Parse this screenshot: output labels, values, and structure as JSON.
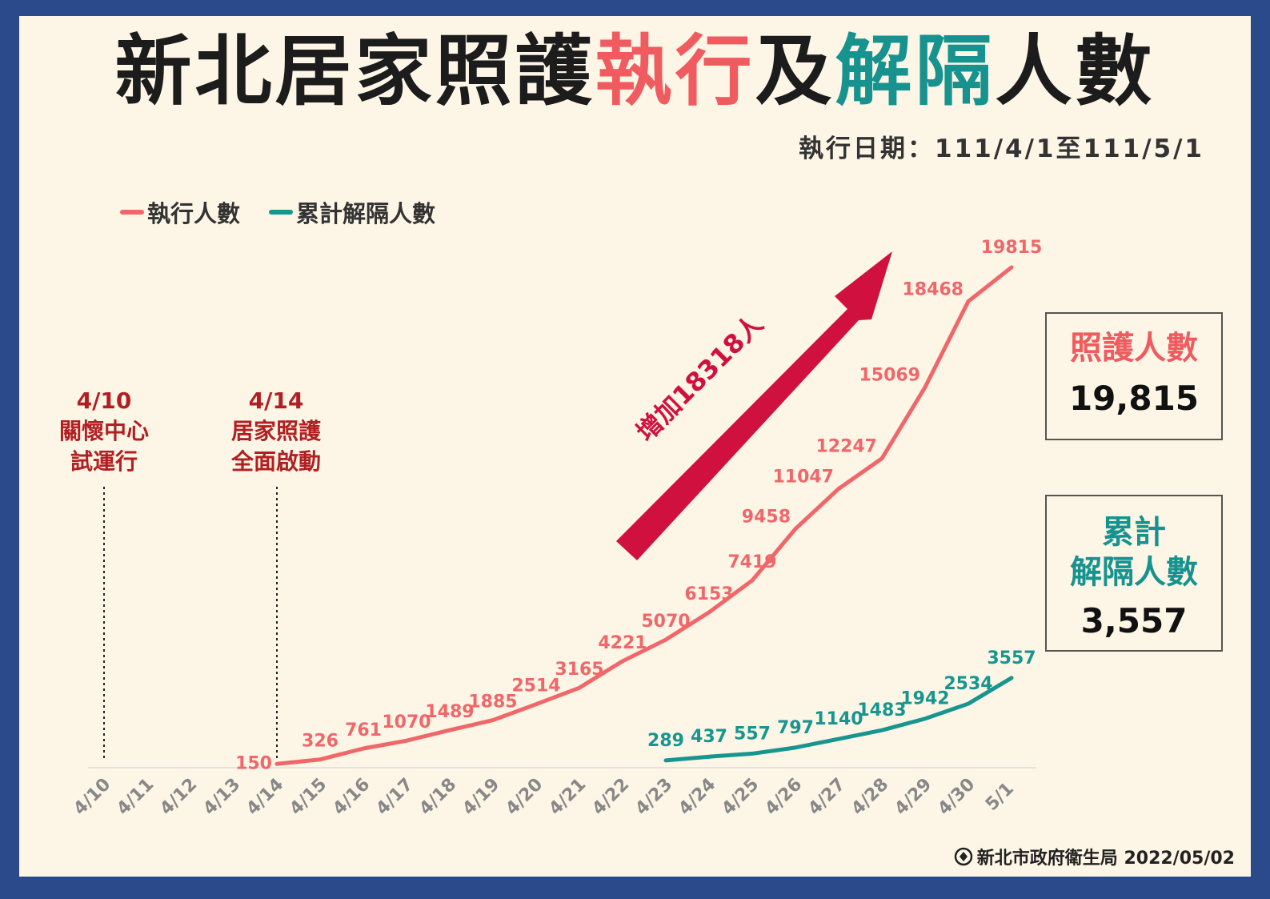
{
  "title": {
    "part1": "新北居家照護",
    "part2": "執行",
    "part3": "及",
    "part4": "解隔",
    "part5": "人數"
  },
  "date_range": "執行日期：111/4/1至111/5/1",
  "legend": [
    {
      "label": "執行人數",
      "color": "#f0676a"
    },
    {
      "label": "累計解隔人數",
      "color": "#16968f"
    }
  ],
  "milestones": [
    {
      "date": "4/10",
      "line1": "關懷中心",
      "line2": "試運行"
    },
    {
      "date": "4/14",
      "line1": "居家照護",
      "line2": "全面啟動"
    }
  ],
  "arrow_label": "增加18318人",
  "stats": {
    "care": {
      "title": "照護人數",
      "value": "19,815"
    },
    "release": {
      "title_line1": "累計",
      "title_line2": "解隔人數",
      "value": "3,557"
    }
  },
  "footer": "新北市政府衛生局 2022/05/02",
  "chart_data": {
    "type": "line",
    "categories": [
      "4/10",
      "4/11",
      "4/12",
      "4/13",
      "4/14",
      "4/15",
      "4/16",
      "4/17",
      "4/18",
      "4/19",
      "4/20",
      "4/21",
      "4/22",
      "4/23",
      "4/24",
      "4/25",
      "4/26",
      "4/27",
      "4/28",
      "4/29",
      "4/30",
      "5/1"
    ],
    "series": [
      {
        "name": "執行人數",
        "color": "#f0676a",
        "values": [
          null,
          null,
          null,
          null,
          150,
          326,
          761,
          1070,
          1489,
          1885,
          2514,
          3165,
          4221,
          5070,
          6153,
          7419,
          9458,
          11047,
          12247,
          15069,
          18468,
          19815
        ]
      },
      {
        "name": "累計解隔人數",
        "color": "#16968f",
        "values": [
          null,
          null,
          null,
          null,
          null,
          null,
          null,
          null,
          null,
          null,
          null,
          null,
          null,
          289,
          437,
          557,
          797,
          1140,
          1483,
          1942,
          2534,
          3557
        ]
      }
    ],
    "ylim": [
      0,
      22000
    ],
    "grid": false,
    "legend_position": "top-left"
  }
}
